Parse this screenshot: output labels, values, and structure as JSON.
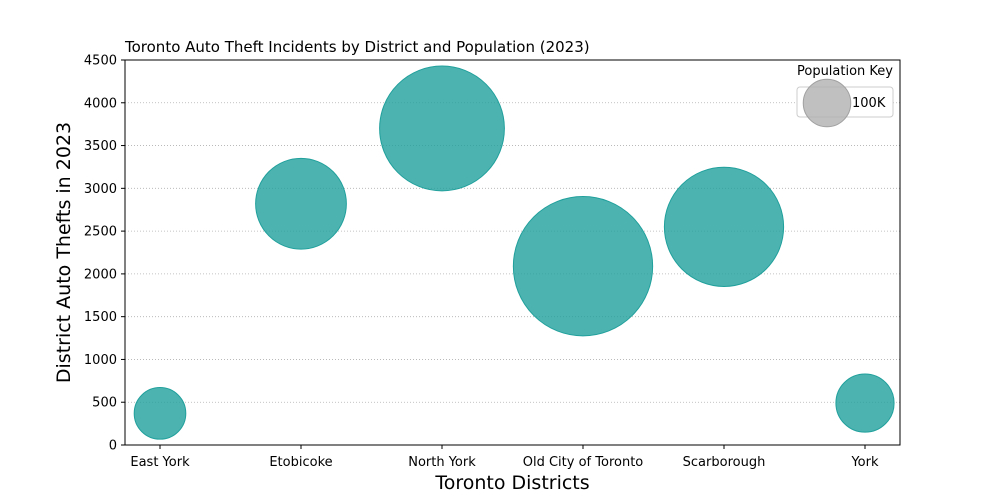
{
  "chart_data": {
    "type": "scatter",
    "title": "Toronto Auto Theft Incidents by District and Population (2023)",
    "xlabel": "Toronto Districts",
    "ylabel": "District Auto Thefts in 2023",
    "categories": [
      "East York",
      "Etobicoke",
      "North York",
      "Old City of Toronto",
      "Scarborough",
      "York"
    ],
    "values": [
      370,
      2820,
      3700,
      2090,
      2550,
      490
    ],
    "population": [
      118000,
      365000,
      690000,
      860000,
      630000,
      150000
    ],
    "ylim": [
      0,
      4500
    ],
    "yticks": [
      0,
      500,
      1000,
      1500,
      2000,
      2500,
      3000,
      3500,
      4000,
      4500
    ],
    "grid": "y-dotted",
    "bubble_color": "#20a09c",
    "legend": {
      "title": "Population Key",
      "label": "100K",
      "reference_population": 100000,
      "position": "top-right",
      "color": "#b0b0b0"
    }
  }
}
